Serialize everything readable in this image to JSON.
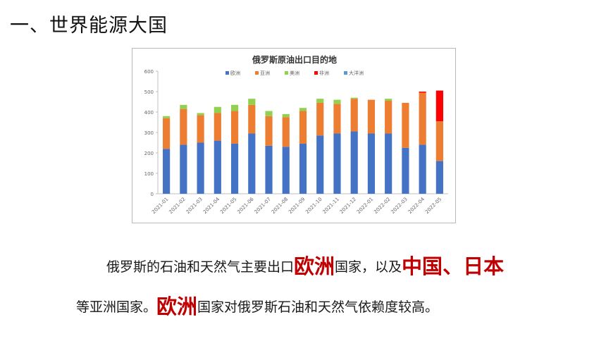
{
  "slide": {
    "title": "一、世界能源大国"
  },
  "chart_data": {
    "type": "bar",
    "stacked": true,
    "title": "俄罗斯原油出口目的地",
    "xlabel": "",
    "ylabel": "",
    "ylim": [
      0,
      600
    ],
    "yticks": [
      0,
      100,
      200,
      300,
      400,
      500,
      600
    ],
    "grid": false,
    "legend_position": "top",
    "categories": [
      "2021-01",
      "2021-02",
      "2021-03",
      "2021-04",
      "2021-05",
      "2021-06",
      "2021-07",
      "2021-08",
      "2021-09",
      "2021-10",
      "2021-11",
      "2021-12",
      "2022-01",
      "2022-02",
      "2022-03",
      "2022-04",
      "2022-05"
    ],
    "series": [
      {
        "name": "欧洲",
        "color": "#4472c4",
        "values": [
          220,
          240,
          250,
          260,
          245,
          295,
          235,
          230,
          245,
          285,
          295,
          305,
          295,
          295,
          225,
          240,
          160
        ]
      },
      {
        "name": "亚洲",
        "color": "#ed7d31",
        "values": [
          150,
          175,
          135,
          135,
          160,
          140,
          145,
          145,
          160,
          160,
          145,
          160,
          165,
          160,
          220,
          255,
          195
        ]
      },
      {
        "name": "美洲",
        "color": "#92d050",
        "values": [
          10,
          20,
          10,
          30,
          30,
          30,
          25,
          15,
          15,
          20,
          20,
          5,
          0,
          10,
          0,
          0,
          0
        ]
      },
      {
        "name": "非洲",
        "color": "#ff0000",
        "values": [
          0,
          0,
          0,
          0,
          0,
          0,
          0,
          0,
          0,
          0,
          0,
          0,
          0,
          0,
          0,
          5,
          150
        ]
      },
      {
        "name": "大洋洲",
        "color": "#5b9bd5",
        "values": [
          0,
          0,
          0,
          0,
          0,
          0,
          0,
          0,
          0,
          0,
          0,
          0,
          0,
          0,
          0,
          0,
          0
        ]
      }
    ]
  },
  "text": {
    "p1_a": "俄罗斯的石油和天然气主要出口",
    "p1_hl1": "欧洲",
    "p1_b": "国家，以及",
    "p1_hl2": "中国",
    "p1_c": "、",
    "p1_hl3": "日本",
    "p2_a": "等亚洲国家。",
    "p2_hl1": "欧洲",
    "p2_b": "国家对俄罗斯石油和天然气依赖度较高。"
  }
}
